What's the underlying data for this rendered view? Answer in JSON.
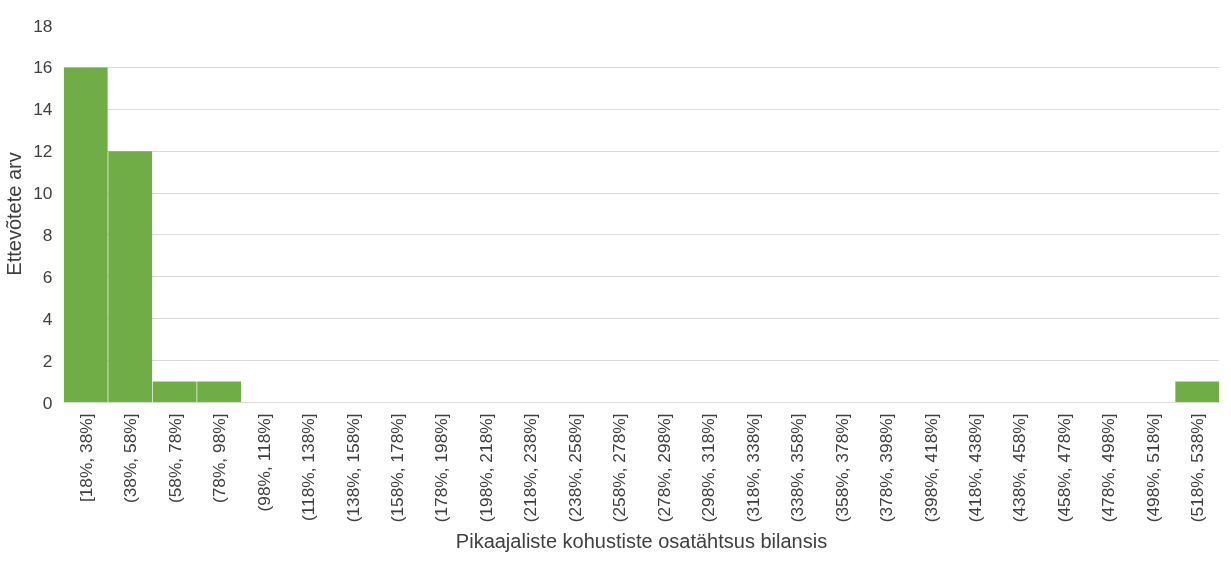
{
  "chart_data": {
    "type": "bar",
    "xlabel": "Pikaajaliste kohustiste osatähtsus bilansis",
    "ylabel": "Ettevõtete arv",
    "categories": [
      "[18%, 38%]",
      "(38%, 58%]",
      "(58%, 78%]",
      "(78%, 98%]",
      "(98%, 118%]",
      "(118%, 138%]",
      "(138%, 158%]",
      "(158%, 178%]",
      "(178%, 198%]",
      "(198%, 218%]",
      "(218%, 238%]",
      "(238%, 258%]",
      "(258%, 278%]",
      "(278%, 298%]",
      "(298%, 318%]",
      "(318%, 338%]",
      "(338%, 358%]",
      "(358%, 378%]",
      "(378%, 398%]",
      "(398%, 418%]",
      "(418%, 438%]",
      "(438%, 458%]",
      "(458%, 478%]",
      "(478%, 498%]",
      "(498%, 518%]",
      "(518%, 538%]"
    ],
    "values": [
      16,
      12,
      1,
      1,
      0,
      0,
      0,
      0,
      0,
      0,
      0,
      0,
      0,
      0,
      0,
      0,
      0,
      0,
      0,
      0,
      0,
      0,
      0,
      0,
      0,
      1
    ],
    "color": "#70ad47",
    "ylim": [
      0,
      18
    ],
    "yticks": [
      0,
      2,
      4,
      6,
      8,
      10,
      12,
      14,
      16,
      18
    ],
    "grid": "y"
  }
}
